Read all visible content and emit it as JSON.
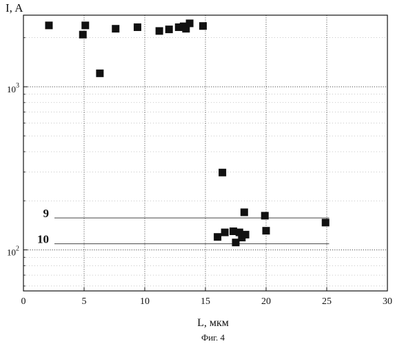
{
  "chart_data": {
    "type": "scatter",
    "title": "",
    "xlabel": "L, мкм",
    "ylabel": "I, A",
    "caption": "Фиг. 4",
    "x_scale": "linear",
    "y_scale": "log",
    "xlim": [
      0,
      30
    ],
    "ylim": [
      56,
      2750
    ],
    "x_ticks": [
      0,
      5,
      10,
      15,
      20,
      25,
      30
    ],
    "y_tick_labels": [
      {
        "value": 100,
        "base": "10",
        "exp": "2"
      },
      {
        "value": 1000,
        "base": "10",
        "exp": "3"
      }
    ],
    "grid": true,
    "points": [
      {
        "x": 2.1,
        "y": 2380
      },
      {
        "x": 4.9,
        "y": 2090
      },
      {
        "x": 5.1,
        "y": 2380
      },
      {
        "x": 6.3,
        "y": 1210
      },
      {
        "x": 7.6,
        "y": 2270
      },
      {
        "x": 9.4,
        "y": 2320
      },
      {
        "x": 11.2,
        "y": 2200
      },
      {
        "x": 12.0,
        "y": 2250
      },
      {
        "x": 12.8,
        "y": 2320
      },
      {
        "x": 13.2,
        "y": 2350
      },
      {
        "x": 13.4,
        "y": 2270
      },
      {
        "x": 13.7,
        "y": 2450
      },
      {
        "x": 14.8,
        "y": 2360
      },
      {
        "x": 16.0,
        "y": 120
      },
      {
        "x": 16.4,
        "y": 298
      },
      {
        "x": 16.6,
        "y": 128
      },
      {
        "x": 17.3,
        "y": 130
      },
      {
        "x": 17.5,
        "y": 111
      },
      {
        "x": 17.8,
        "y": 128
      },
      {
        "x": 18.0,
        "y": 119
      },
      {
        "x": 18.2,
        "y": 170
      },
      {
        "x": 18.3,
        "y": 124
      },
      {
        "x": 19.9,
        "y": 162
      },
      {
        "x": 20.0,
        "y": 131
      },
      {
        "x": 24.9,
        "y": 147
      }
    ],
    "reference_lines": [
      {
        "label": "9",
        "y": 157,
        "x_start": 2.1,
        "x_end": 25.2
      },
      {
        "label": "10",
        "y": 109,
        "x_start": 2.1,
        "x_end": 25.2
      }
    ],
    "colors": {
      "marker": "#111111",
      "grid": "#333333",
      "line": "#444444"
    }
  }
}
